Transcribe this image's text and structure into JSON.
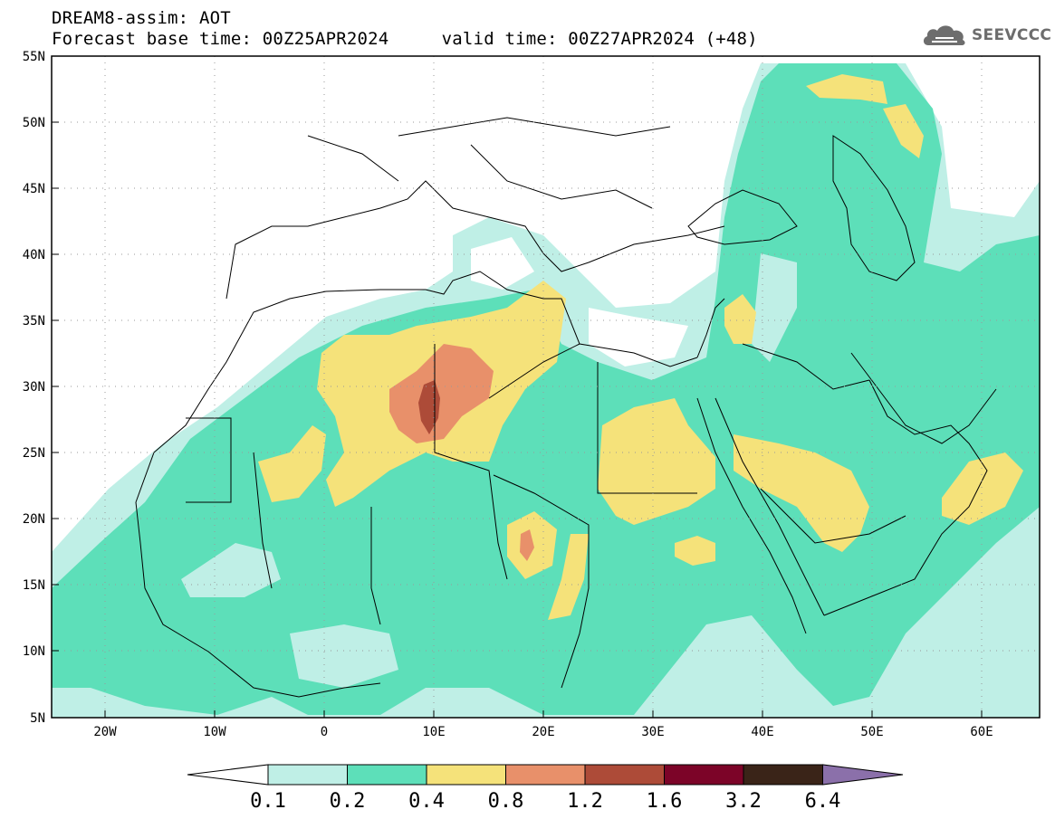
{
  "header": {
    "title_line1": "DREAM8-assim: AOT",
    "title_line2": "Forecast base time: 00Z25APR2024     valid time: 00Z27APR2024 (+48)",
    "logo_text": "SEEVCCC",
    "logo_icon": "cloud-icon"
  },
  "map": {
    "lat_ticks": [
      "55N",
      "50N",
      "45N",
      "40N",
      "35N",
      "30N",
      "25N",
      "20N",
      "15N",
      "10N",
      "5N"
    ],
    "lon_ticks": [
      "20W",
      "10W",
      "0",
      "10E",
      "20E",
      "30E",
      "40E",
      "50E",
      "60E"
    ],
    "lon_range": [
      -25,
      65
    ],
    "lat_range": [
      5,
      55
    ],
    "grid": "dotted"
  },
  "colorbar": {
    "labels": [
      "0.1",
      "0.2",
      "0.4",
      "0.8",
      "1.2",
      "1.6",
      "3.2",
      "6.4"
    ],
    "colors": [
      "#ffffff",
      "#bfefe6",
      "#5ddfb9",
      "#f5e27a",
      "#e8906a",
      "#ad4b38",
      "#7c0428",
      "#3a2418",
      "#8b70aa"
    ]
  }
}
